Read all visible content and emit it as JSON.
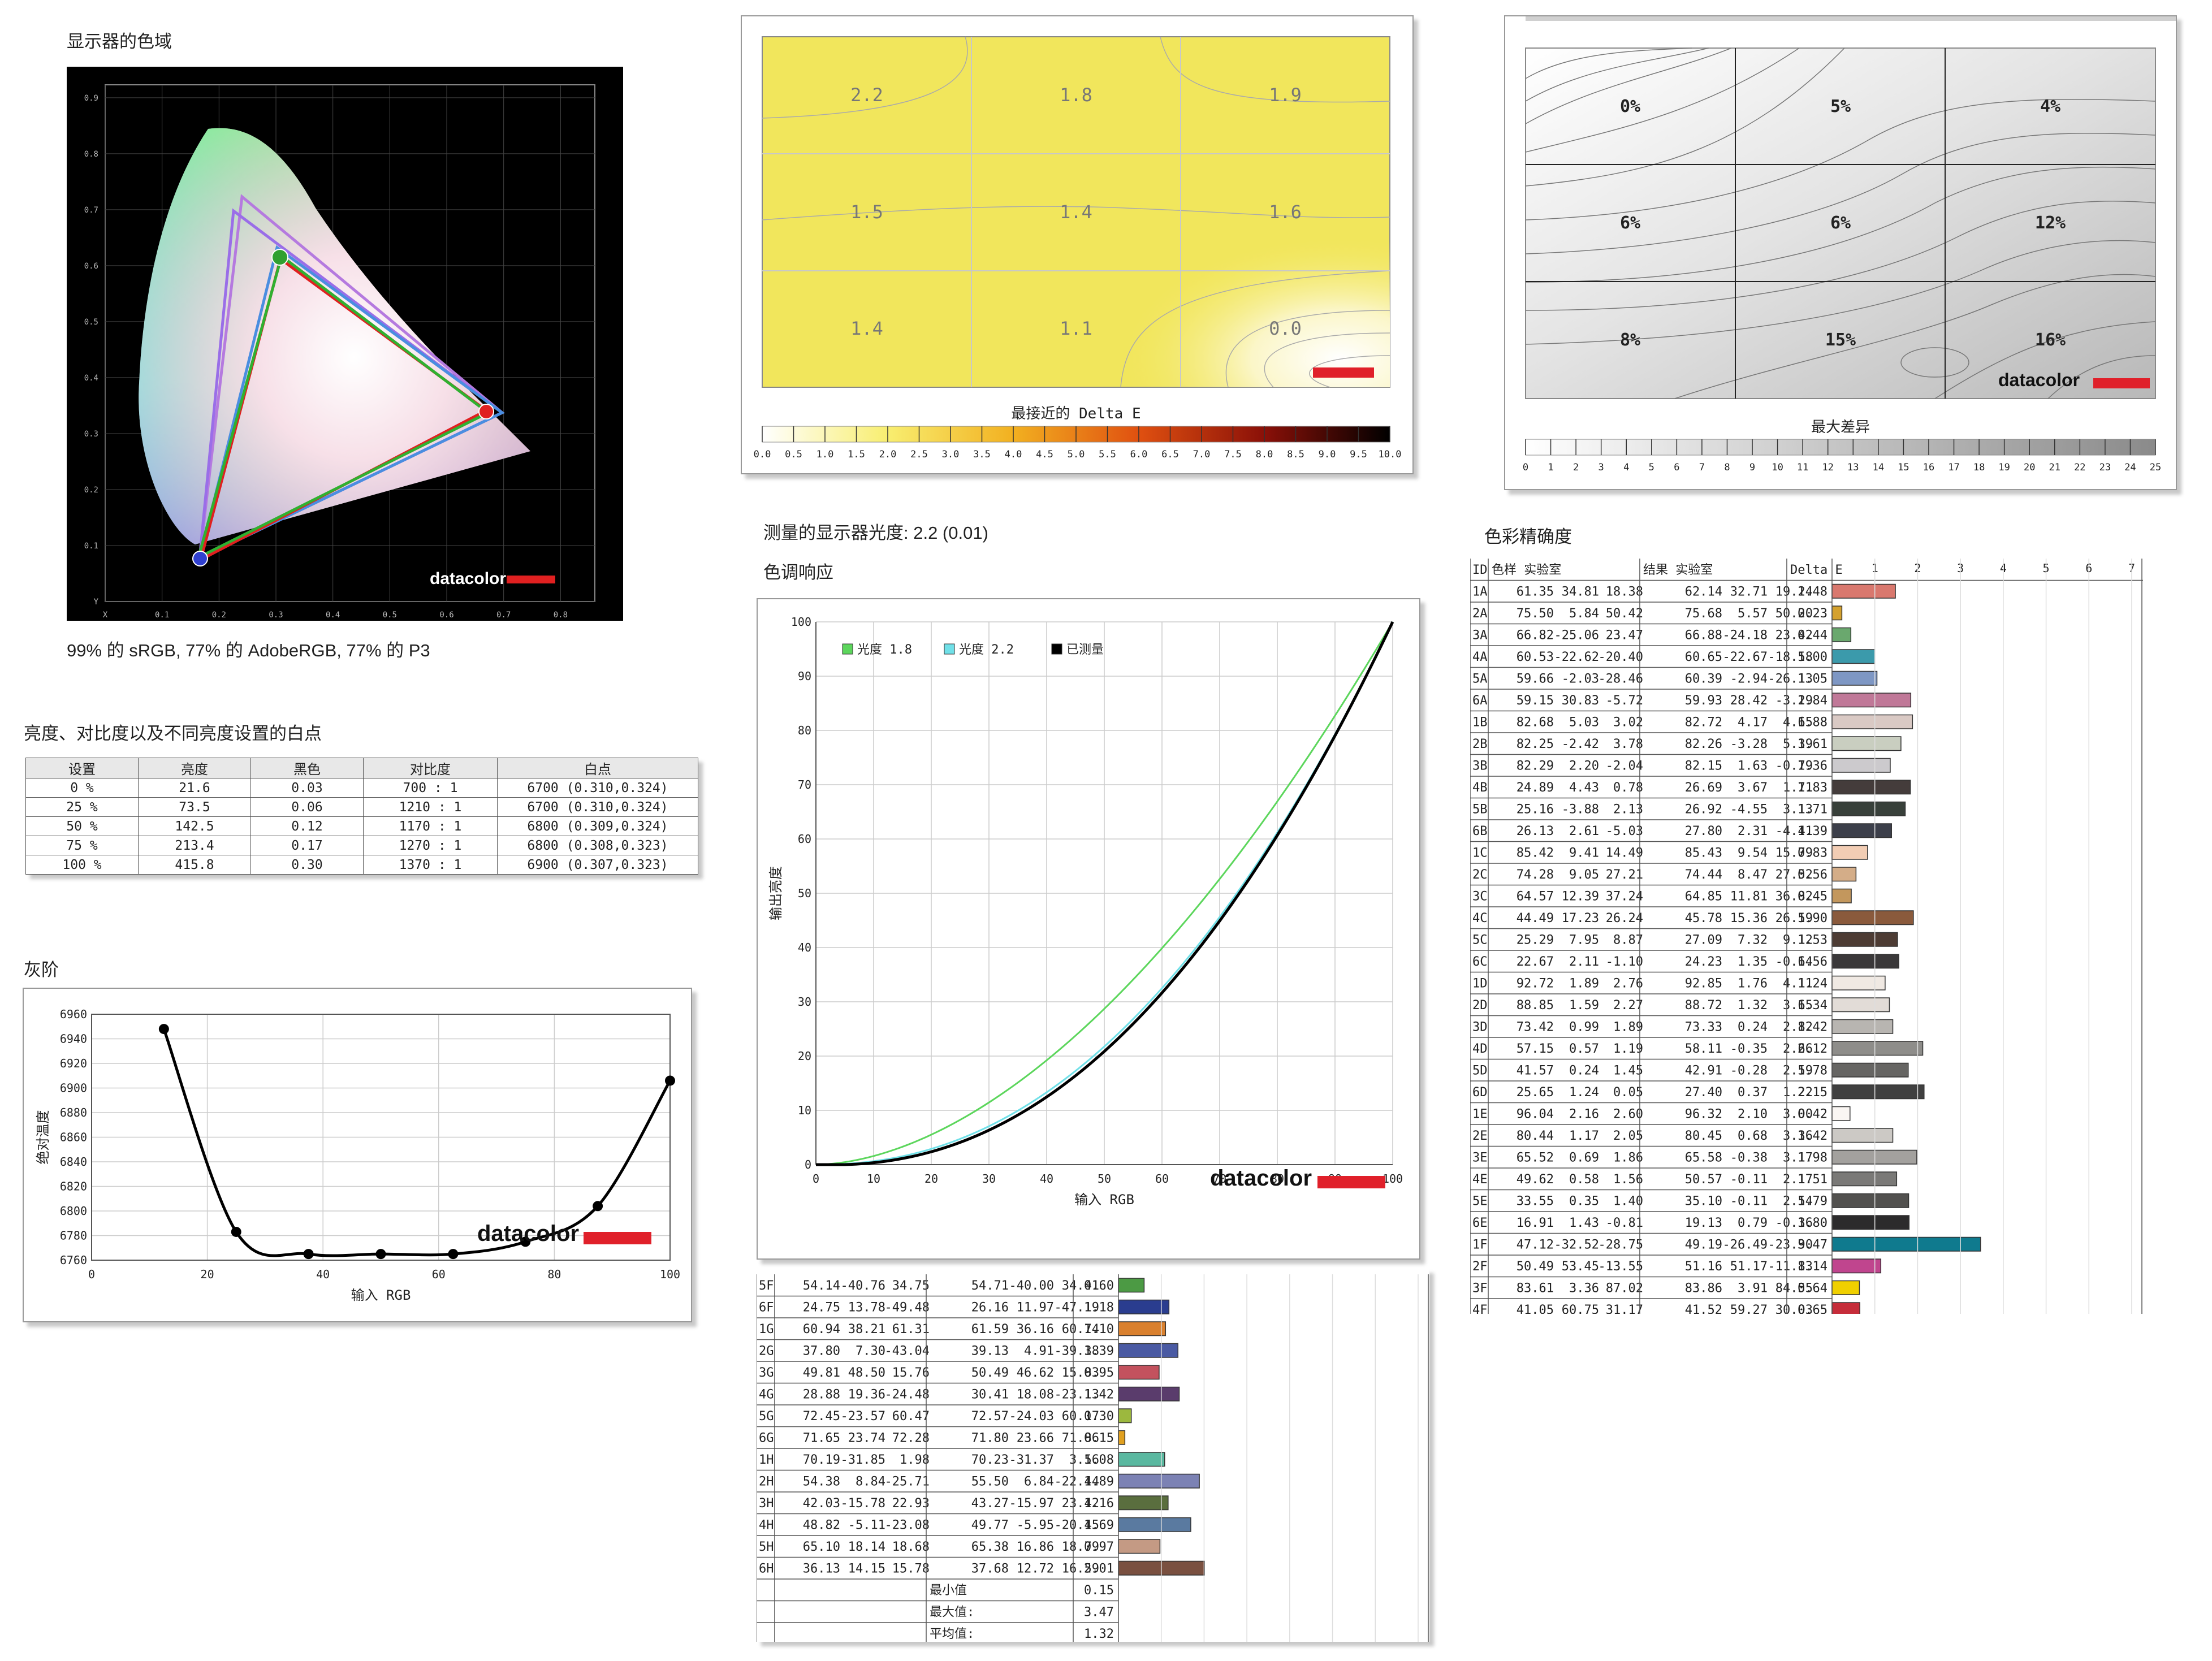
{
  "labels": {
    "gamut_title": "显示器的色域",
    "gamut_caption": "99% 的 sRGB, 77% 的 AdobeRGB, 77% 的 P3",
    "brightness_title": "亮度、对比度以及不同亮度设置的白点",
    "grayscale_title": "灰阶",
    "gamma_measured": "测量的显示器光度: 2.2 (0.01)",
    "tone_title": "色调响应",
    "accuracy_title": "色彩精确度",
    "brand": "datacolor"
  },
  "gamut": {
    "x_ticks": [
      "X",
      "0.1",
      "0.2",
      "0.3",
      "0.4",
      "0.5",
      "0.6",
      "0.7",
      "0.8"
    ],
    "y_ticks": [
      "Y",
      "0.1",
      "0.2",
      "0.3",
      "0.4",
      "0.5",
      "0.6",
      "0.7",
      "0.8",
      "0.9"
    ],
    "colors": {
      "srgb": "#4a8ee0",
      "adobe": "#9a6ee8",
      "p3": "#b57adf",
      "measured_red": "#e02020",
      "measured_green": "#30b030"
    }
  },
  "uniformity": {
    "values": [
      [
        "2.2",
        "1.8",
        "1.9"
      ],
      [
        "1.5",
        "1.4",
        "1.6"
      ],
      [
        "1.4",
        "1.1",
        "0.0"
      ]
    ],
    "legend_title": "最接近的 Delta E",
    "legend_ticks": [
      "0.0",
      "0.5",
      "1.0",
      "1.5",
      "2.0",
      "2.5",
      "3.0",
      "3.5",
      "4.0",
      "4.5",
      "5.0",
      "5.5",
      "6.0",
      "6.5",
      "7.0",
      "7.5",
      "8.0",
      "8.5",
      "9.0",
      "9.5",
      "10.0"
    ]
  },
  "max_diff": {
    "values": [
      [
        "0%",
        "5%",
        "4%"
      ],
      [
        "6%",
        "6%",
        "12%"
      ],
      [
        "8%",
        "15%",
        "16%"
      ]
    ],
    "legend_title": "最大差异",
    "legend_ticks": [
      "0",
      "1",
      "2",
      "3",
      "4",
      "5",
      "6",
      "7",
      "8",
      "9",
      "10",
      "11",
      "12",
      "13",
      "14",
      "15",
      "16",
      "17",
      "18",
      "19",
      "20",
      "21",
      "22",
      "23",
      "24",
      "25"
    ]
  },
  "brightness_table": {
    "headers": [
      "设置",
      "亮度",
      "黑色",
      "对比度",
      "白点"
    ],
    "rows": [
      [
        "0 %",
        "21.6",
        "0.03",
        "700 : 1",
        "6700 (0.310,0.324)"
      ],
      [
        "25 %",
        "73.5",
        "0.06",
        "1210 : 1",
        "6700 (0.310,0.324)"
      ],
      [
        "50 %",
        "142.5",
        "0.12",
        "1170 : 1",
        "6800 (0.309,0.324)"
      ],
      [
        "75 %",
        "213.4",
        "0.17",
        "1270 : 1",
        "6800 (0.308,0.323)"
      ],
      [
        "100 %",
        "415.8",
        "0.30",
        "1370 : 1",
        "6900 (0.307,0.323)"
      ]
    ]
  },
  "chart_data": [
    {
      "type": "line",
      "title": "灰阶",
      "xlabel": "输入 RGB",
      "ylabel": "绝对温度",
      "xlim": [
        0,
        100
      ],
      "ylim": [
        6760,
        6960
      ],
      "x_ticks": [
        "0",
        "20",
        "40",
        "60",
        "80",
        "100"
      ],
      "y_ticks": [
        "6760",
        "6780",
        "6800",
        "6820",
        "6840",
        "6860",
        "6880",
        "6900",
        "6920",
        "6940",
        "6960"
      ],
      "series": [
        {
          "x": [
            12.5,
            25,
            37.5,
            50,
            62.5,
            75,
            87.5,
            100
          ],
          "values": [
            6948,
            6783,
            6765,
            6765,
            6765,
            6775,
            6804,
            6906
          ]
        }
      ]
    },
    {
      "type": "line",
      "title": "色调响应",
      "xlabel": "输入 RGB",
      "ylabel": "输出亮度",
      "xlim": [
        0,
        100
      ],
      "ylim": [
        0,
        100
      ],
      "x_ticks": [
        "0",
        "10",
        "20",
        "30",
        "40",
        "50",
        "60",
        "70",
        "80",
        "90",
        "100"
      ],
      "y_ticks": [
        "0",
        "10",
        "20",
        "30",
        "40",
        "50",
        "60",
        "70",
        "80",
        "90",
        "100"
      ],
      "series": [
        {
          "name": "光度 1.8",
          "color": "#5cd65c",
          "gamma": 1.8
        },
        {
          "name": "光度 2.2",
          "color": "#70e0e8",
          "gamma": 2.2
        },
        {
          "name": "已测量",
          "color": "#000000",
          "gamma": 2.2
        }
      ]
    },
    {
      "type": "bar",
      "title": "色彩精确度",
      "xlim": [
        0,
        7
      ],
      "x_ticks": [
        "1",
        "2",
        "3",
        "4",
        "5",
        "6",
        "7"
      ],
      "headers": [
        "ID",
        "色样 实验室",
        "结果 实验室",
        "Delta E"
      ],
      "rows": [
        [
          "1A",
          "61.35",
          "34.81",
          "18.38",
          "62.14",
          "32.71",
          "19.24",
          "1.48",
          "#d9786e"
        ],
        [
          "2A",
          "75.50",
          "5.84",
          "50.42",
          "75.68",
          "5.57",
          "50.20",
          "0.23",
          "#d4a12e"
        ],
        [
          "3A",
          "66.82",
          "-25.06",
          "23.47",
          "66.88",
          "-24.18",
          "23.42",
          "0.44",
          "#6aa86e"
        ],
        [
          "4A",
          "60.53",
          "-22.62",
          "-20.40",
          "60.65",
          "-22.67",
          "-18.58",
          "1.00",
          "#3b9aab"
        ],
        [
          "5A",
          "59.66",
          "-2.03",
          "-28.46",
          "60.39",
          "-2.94",
          "-26.13",
          "1.05",
          "#7e97c4"
        ],
        [
          "6A",
          "59.15",
          "30.83",
          "-5.72",
          "59.93",
          "28.42",
          "-3.29",
          "1.84",
          "#c07898"
        ],
        [
          "1B",
          "82.68",
          "5.03",
          "3.02",
          "82.72",
          "4.17",
          "4.65",
          "1.88",
          "#d9c9c4"
        ],
        [
          "2B",
          "82.25",
          "-2.42",
          "3.78",
          "82.26",
          "-3.28",
          "5.39",
          "1.61",
          "#c9cec0"
        ],
        [
          "3B",
          "82.29",
          "2.20",
          "-2.04",
          "82.15",
          "1.63",
          "-0.79",
          "1.36",
          "#cccacd"
        ],
        [
          "4B",
          "24.89",
          "4.43",
          "0.78",
          "26.69",
          "3.67",
          "1.71",
          "1.83",
          "#443c3b"
        ],
        [
          "5B",
          "25.16",
          "-3.88",
          "2.13",
          "26.92",
          "-4.55",
          "3.13",
          "1.71",
          "#38403a"
        ],
        [
          "6B",
          "26.13",
          "2.61",
          "-5.03",
          "27.80",
          "2.31",
          "-4.41",
          "1.39",
          "#3c3f4a"
        ],
        [
          "1C",
          "85.42",
          "9.41",
          "14.49",
          "85.43",
          "9.54",
          "15.79",
          "0.83",
          "#f2cdb4"
        ],
        [
          "2C",
          "74.28",
          "9.05",
          "27.21",
          "74.44",
          "8.47",
          "27.52",
          "0.56",
          "#d4ad88"
        ],
        [
          "3C",
          "64.57",
          "12.39",
          "37.24",
          "64.85",
          "11.81",
          "36.82",
          "0.45",
          "#c3975d"
        ],
        [
          "4C",
          "44.49",
          "17.23",
          "26.24",
          "45.78",
          "15.36",
          "26.59",
          "1.90",
          "#8a5a3c"
        ],
        [
          "5C",
          "25.29",
          "7.95",
          "8.87",
          "27.09",
          "7.32",
          "9.12",
          "1.53",
          "#4d3c34"
        ],
        [
          "6C",
          "22.67",
          "2.11",
          "-1.10",
          "24.23",
          "1.35",
          "-0.64",
          "1.56",
          "#3a3839"
        ],
        [
          "1D",
          "92.72",
          "1.89",
          "2.76",
          "92.85",
          "1.76",
          "4.11",
          "1.24",
          "#f0e9e3"
        ],
        [
          "2D",
          "88.85",
          "1.59",
          "2.27",
          "88.72",
          "1.32",
          "3.65",
          "1.34",
          "#e2dcd7"
        ],
        [
          "3D",
          "73.42",
          "0.99",
          "1.89",
          "73.33",
          "0.24",
          "2.82",
          "1.42",
          "#b8b5b1"
        ],
        [
          "4D",
          "57.15",
          "0.57",
          "1.19",
          "58.11",
          "-0.35",
          "2.66",
          "2.12",
          "#8e8d8a"
        ],
        [
          "5D",
          "41.57",
          "0.24",
          "1.45",
          "42.91",
          "-0.28",
          "2.59",
          "1.78",
          "#666563"
        ],
        [
          "6D",
          "25.65",
          "1.24",
          "0.05",
          "27.40",
          "0.37",
          "1.22",
          "2.15",
          "#404040"
        ],
        [
          "1E",
          "96.04",
          "2.16",
          "2.60",
          "96.32",
          "2.10",
          "3.00",
          "0.42",
          "#faf6f3"
        ],
        [
          "2E",
          "80.44",
          "1.17",
          "2.05",
          "80.45",
          "0.68",
          "3.36",
          "1.42",
          "#ccc9c5"
        ],
        [
          "3E",
          "65.52",
          "0.69",
          "1.86",
          "65.58",
          "-0.38",
          "3.17",
          "1.98",
          "#a3a19e"
        ],
        [
          "4E",
          "49.62",
          "0.58",
          "1.56",
          "50.57",
          "-0.11",
          "2.17",
          "1.51",
          "#7a7977"
        ],
        [
          "5E",
          "33.55",
          "0.35",
          "1.40",
          "35.10",
          "-0.11",
          "2.54",
          "1.79",
          "#52514f"
        ],
        [
          "6E",
          "16.91",
          "1.43",
          "-0.81",
          "19.13",
          "0.79",
          "-0.36",
          "1.80",
          "#2c2b2c"
        ],
        [
          "1F",
          "47.12",
          "-32.52",
          "-28.75",
          "49.19",
          "-26.49",
          "-23.90",
          "3.47",
          "#0f7a8e"
        ],
        [
          "2F",
          "50.49",
          "53.45",
          "-13.55",
          "51.16",
          "51.17",
          "-11.83",
          "1.14",
          "#c0458e"
        ],
        [
          "3F",
          "83.61",
          "3.36",
          "87.02",
          "83.86",
          "3.91",
          "84.55",
          "0.64",
          "#f0d000"
        ],
        [
          "4F",
          "41.05",
          "60.75",
          "31.17",
          "41.52",
          "59.27",
          "30.03",
          "0.65",
          "#c62d3a"
        ],
        [
          "5F",
          "54.14",
          "-40.76",
          "34.75",
          "54.71",
          "-40.00",
          "34.41",
          "0.60",
          "#4c9a44"
        ],
        [
          "6F",
          "24.75",
          "13.78",
          "-49.48",
          "26.16",
          "11.97",
          "-47.19",
          "1.18",
          "#2a3d8f"
        ],
        [
          "1G",
          "60.94",
          "38.21",
          "61.31",
          "61.59",
          "36.16",
          "60.74",
          "1.10",
          "#d9802e"
        ],
        [
          "2G",
          "37.80",
          "7.30",
          "-43.04",
          "39.13",
          "4.91",
          "-39.38",
          "1.39",
          "#4a5aa3"
        ],
        [
          "3G",
          "49.81",
          "48.50",
          "15.76",
          "50.49",
          "46.62",
          "15.83",
          "0.95",
          "#c3525e"
        ],
        [
          "4G",
          "28.88",
          "19.36",
          "-24.48",
          "30.41",
          "18.08",
          "-23.13",
          "1.42",
          "#5a3c6c"
        ],
        [
          "5G",
          "72.45",
          "-23.57",
          "60.47",
          "72.57",
          "-24.03",
          "60.17",
          "0.30",
          "#9cb83e"
        ],
        [
          "6G",
          "71.65",
          "23.74",
          "72.28",
          "71.80",
          "23.66",
          "71.86",
          "0.15",
          "#e0a020"
        ],
        [
          "1H",
          "70.19",
          "-31.85",
          "1.98",
          "70.23",
          "-31.37",
          "3.56",
          "1.08",
          "#5ab8a0"
        ],
        [
          "2H",
          "54.38",
          "8.84",
          "-25.71",
          "55.50",
          "6.84",
          "-22.44",
          "1.89",
          "#7c82b4"
        ],
        [
          "3H",
          "42.03",
          "-15.78",
          "22.93",
          "43.27",
          "-15.97",
          "23.42",
          "1.16",
          "#5a6e3e"
        ],
        [
          "4H",
          "48.82",
          "-5.11",
          "-23.08",
          "49.77",
          "-5.95",
          "-20.45",
          "1.69",
          "#5a7aa0"
        ],
        [
          "5H",
          "65.10",
          "18.14",
          "18.68",
          "65.38",
          "16.86",
          "18.79",
          "0.97",
          "#c49a84"
        ],
        [
          "6H",
          "36.13",
          "14.15",
          "15.78",
          "37.68",
          "12.72",
          "16.59",
          "2.01",
          "#7a5040"
        ]
      ],
      "summary": [
        [
          "最小值",
          "0.15"
        ],
        [
          "最大值:",
          "3.47"
        ],
        [
          "平均值:",
          "1.32"
        ]
      ]
    }
  ]
}
